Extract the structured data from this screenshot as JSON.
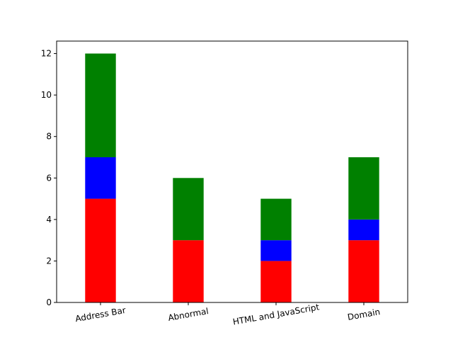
{
  "chart_data": {
    "type": "bar",
    "stacked": true,
    "categories": [
      "Address Bar",
      "Abnormal",
      "HTML and JavaScript",
      "Domain"
    ],
    "series": [
      {
        "values": [
          5,
          3,
          2,
          3
        ],
        "color": "#ff0000"
      },
      {
        "values": [
          2,
          0,
          1,
          1
        ],
        "color": "#0000ff"
      },
      {
        "values": [
          5,
          3,
          2,
          3
        ],
        "color": "#008000"
      }
    ],
    "title": "",
    "xlabel": "",
    "ylabel": "",
    "ylim": [
      0,
      12.6
    ],
    "yticks": [
      0,
      2,
      4,
      6,
      8,
      10,
      12
    ],
    "xtick_rotation_deg": -10,
    "grid": false,
    "legend": "none"
  }
}
